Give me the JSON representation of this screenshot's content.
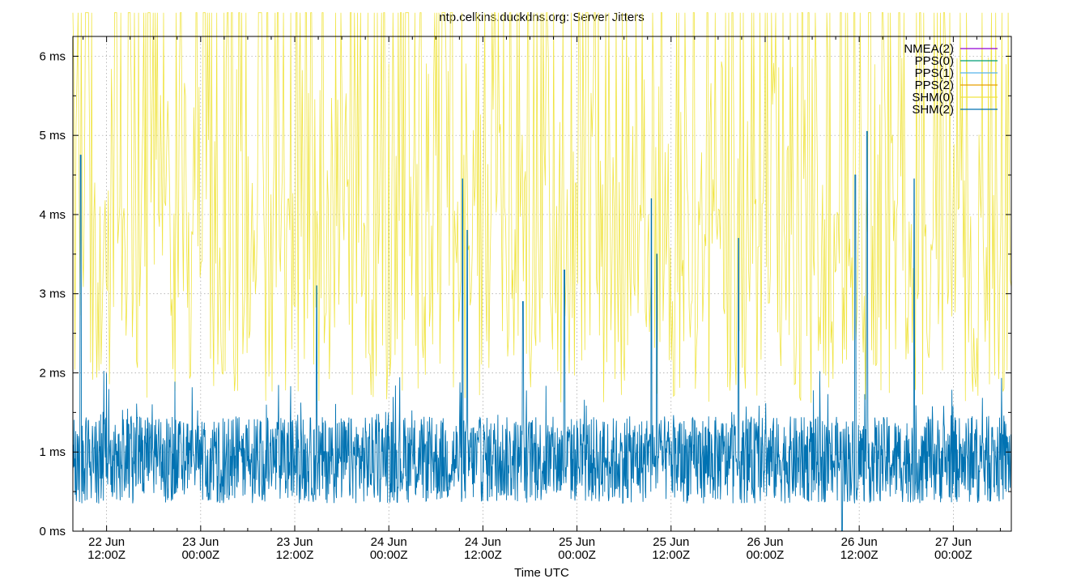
{
  "chart_data": {
    "type": "line",
    "title": "ntp.celkins.duckdns.org: Server Jitters",
    "xlabel": "Time UTC",
    "ylabel": "",
    "ylim": [
      0,
      6.25
    ],
    "yticks": [
      {
        "value": 0,
        "label": "0 ms"
      },
      {
        "value": 1,
        "label": "1 ms"
      },
      {
        "value": 2,
        "label": "2 ms"
      },
      {
        "value": 3,
        "label": "3 ms"
      },
      {
        "value": 4,
        "label": "4 ms"
      },
      {
        "value": 5,
        "label": "5 ms"
      },
      {
        "value": 6,
        "label": "6 ms"
      }
    ],
    "xlim_hours": [
      -4.3,
      115.4
    ],
    "xticks": [
      {
        "hours": 0,
        "line1": "22 Jun",
        "line2": "12:00Z"
      },
      {
        "hours": 12,
        "line1": "23 Jun",
        "line2": "00:00Z"
      },
      {
        "hours": 24,
        "line1": "23 Jun",
        "line2": "12:00Z"
      },
      {
        "hours": 36,
        "line1": "24 Jun",
        "line2": "00:00Z"
      },
      {
        "hours": 48,
        "line1": "24 Jun",
        "line2": "12:00Z"
      },
      {
        "hours": 60,
        "line1": "25 Jun",
        "line2": "00:00Z"
      },
      {
        "hours": 72,
        "line1": "25 Jun",
        "line2": "12:00Z"
      },
      {
        "hours": 84,
        "line1": "26 Jun",
        "line2": "00:00Z"
      },
      {
        "hours": 96,
        "line1": "26 Jun",
        "line2": "12:00Z"
      },
      {
        "hours": 108,
        "line1": "27 Jun",
        "line2": "00:00Z"
      }
    ],
    "grid": true,
    "legend_position": "top-right",
    "series": [
      {
        "name": "NMEA(2)",
        "color": "#9400d3"
      },
      {
        "name": "PPS(0)",
        "color": "#009e73"
      },
      {
        "name": "PPS(1)",
        "color": "#56b4e9"
      },
      {
        "name": "PPS(2)",
        "color": "#e69f00"
      },
      {
        "name": "SHM(0)",
        "color": "#f0e442"
      },
      {
        "name": "SHM(2)",
        "color": "#0072b2"
      }
    ]
  }
}
